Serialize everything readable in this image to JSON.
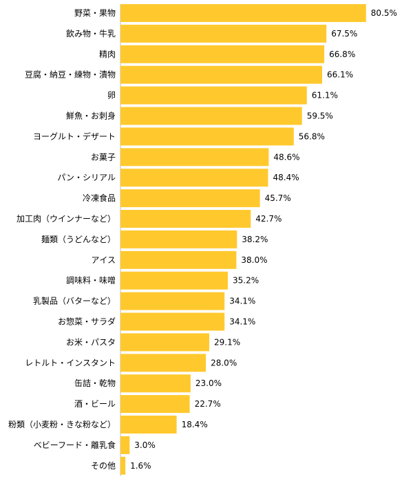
{
  "chart_data": {
    "type": "bar",
    "orientation": "horizontal",
    "categories": [
      "野菜・果物",
      "飲み物・牛乳",
      "精肉",
      "豆腐・納豆・練物・漬物",
      "卵",
      "鮮魚・お刺身",
      "ヨーグルト・デザート",
      "お菓子",
      "パン・シリアル",
      "冷凍食品",
      "加工肉（ウインナーなど）",
      "麺類（うどんなど）",
      "アイス",
      "調味料・味噌",
      "乳製品（バターなど）",
      "お惣菜・サラダ",
      "お米・パスタ",
      "レトルト・インスタント",
      "缶詰・乾物",
      "酒・ビール",
      "粉類（小麦粉・きな粉など）",
      "ベビーフード・離乳食",
      "その他"
    ],
    "values": [
      80.5,
      67.5,
      66.8,
      66.1,
      61.1,
      59.5,
      56.8,
      48.6,
      48.4,
      45.7,
      42.7,
      38.2,
      38.0,
      35.2,
      34.1,
      34.1,
      29.1,
      28.0,
      23.0,
      22.7,
      18.4,
      3.0,
      1.6
    ],
    "value_labels": [
      "80.5%",
      "67.5%",
      "66.8%",
      "66.1%",
      "61.1%",
      "59.5%",
      "56.8%",
      "48.6%",
      "48.4%",
      "45.7%",
      "42.7%",
      "38.2%",
      "38.0%",
      "35.2%",
      "34.1%",
      "34.1%",
      "29.1%",
      "28.0%",
      "23.0%",
      "22.7%",
      "18.4%",
      "3.0%",
      "1.6%"
    ],
    "unit": "%",
    "xlim": [
      0,
      100
    ],
    "grid": false,
    "legend": "none",
    "bar_color": "#FFC92E"
  }
}
